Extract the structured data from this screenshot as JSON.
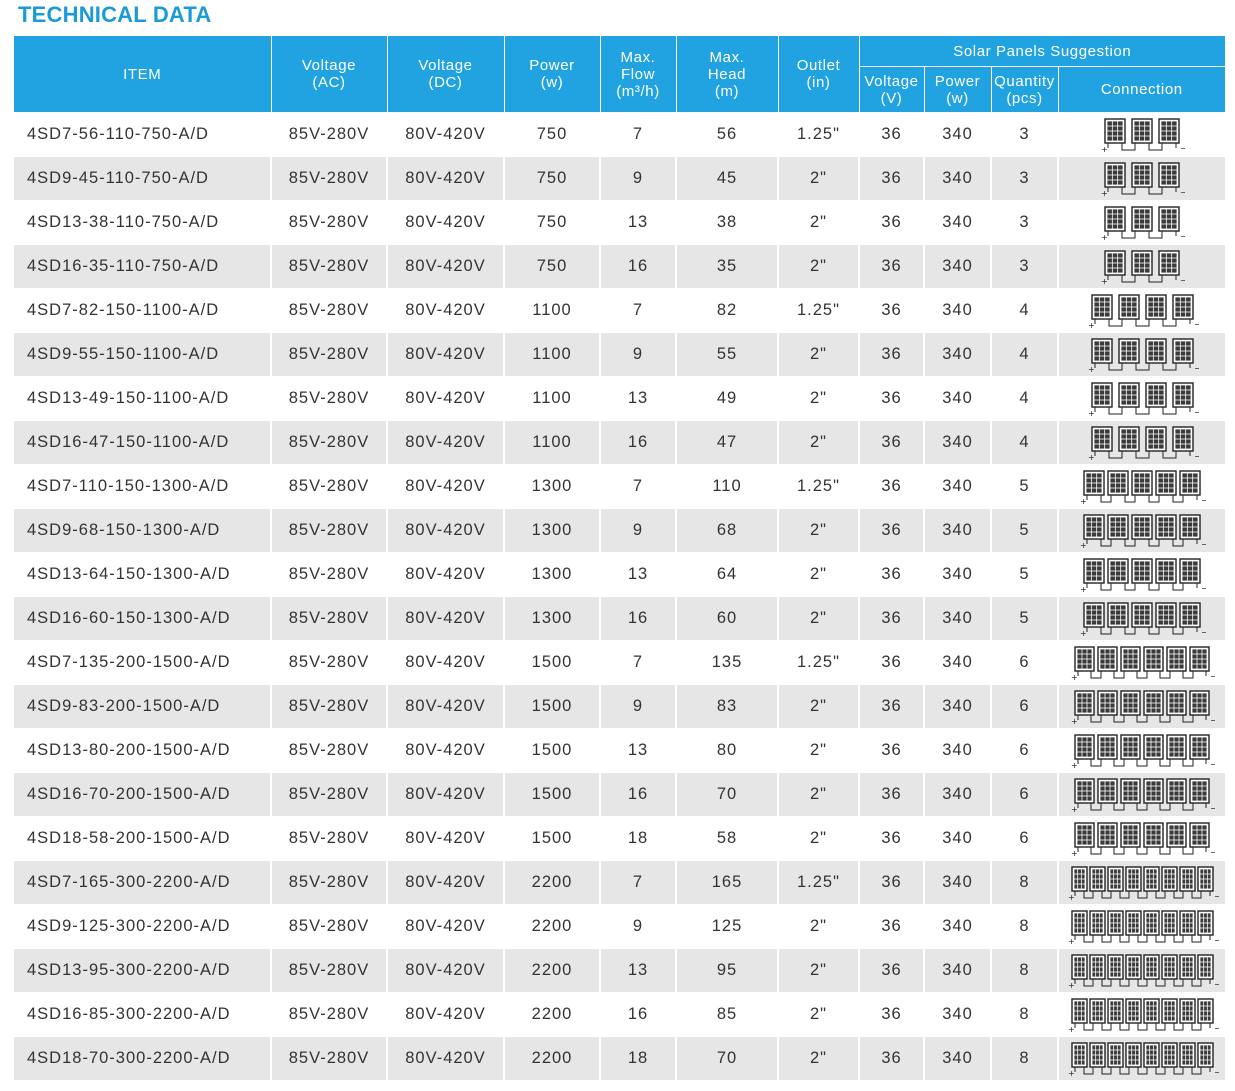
{
  "title": "TECHNICAL DATA",
  "headers": {
    "item": "ITEM",
    "voltage_ac": [
      "Voltage",
      "(AC)"
    ],
    "voltage_dc": [
      "Voltage",
      "(DC)"
    ],
    "power": [
      "Power",
      "(w)"
    ],
    "max_flow": [
      "Max.",
      "Flow",
      "(m³/h)"
    ],
    "max_head": [
      "Max.",
      "Head",
      "(m)"
    ],
    "outlet": [
      "Outlet",
      "(in)"
    ],
    "solar_group": "Solar Panels Suggestion",
    "solar_voltage": [
      "Voltage",
      "(V)"
    ],
    "solar_power": [
      "Power",
      "(w)"
    ],
    "solar_quantity": [
      "Quantity",
      "(pcs)"
    ],
    "connection": "Connection"
  },
  "rows": [
    {
      "item": "4SD7-56-110-750-A/D",
      "voltage_ac": "85V-280V",
      "voltage_dc": "80V-420V",
      "power": "750",
      "max_flow": "7",
      "max_head": "56",
      "outlet": "1.25\"",
      "panel_voltage": "36",
      "panel_power": "340",
      "quantity": "3",
      "panels": 3
    },
    {
      "item": "4SD9-45-110-750-A/D",
      "voltage_ac": "85V-280V",
      "voltage_dc": "80V-420V",
      "power": "750",
      "max_flow": "9",
      "max_head": "45",
      "outlet": "2\"",
      "panel_voltage": "36",
      "panel_power": "340",
      "quantity": "3",
      "panels": 3
    },
    {
      "item": "4SD13-38-110-750-A/D",
      "voltage_ac": "85V-280V",
      "voltage_dc": "80V-420V",
      "power": "750",
      "max_flow": "13",
      "max_head": "38",
      "outlet": "2\"",
      "panel_voltage": "36",
      "panel_power": "340",
      "quantity": "3",
      "panels": 3
    },
    {
      "item": "4SD16-35-110-750-A/D",
      "voltage_ac": "85V-280V",
      "voltage_dc": "80V-420V",
      "power": "750",
      "max_flow": "16",
      "max_head": "35",
      "outlet": "2\"",
      "panel_voltage": "36",
      "panel_power": "340",
      "quantity": "3",
      "panels": 3
    },
    {
      "item": "4SD7-82-150-1100-A/D",
      "voltage_ac": "85V-280V",
      "voltage_dc": "80V-420V",
      "power": "1100",
      "max_flow": "7",
      "max_head": "82",
      "outlet": "1.25\"",
      "panel_voltage": "36",
      "panel_power": "340",
      "quantity": "4",
      "panels": 4
    },
    {
      "item": "4SD9-55-150-1100-A/D",
      "voltage_ac": "85V-280V",
      "voltage_dc": "80V-420V",
      "power": "1100",
      "max_flow": "9",
      "max_head": "55",
      "outlet": "2\"",
      "panel_voltage": "36",
      "panel_power": "340",
      "quantity": "4",
      "panels": 4
    },
    {
      "item": "4SD13-49-150-1100-A/D",
      "voltage_ac": "85V-280V",
      "voltage_dc": "80V-420V",
      "power": "1100",
      "max_flow": "13",
      "max_head": "49",
      "outlet": "2\"",
      "panel_voltage": "36",
      "panel_power": "340",
      "quantity": "4",
      "panels": 4
    },
    {
      "item": "4SD16-47-150-1100-A/D",
      "voltage_ac": "85V-280V",
      "voltage_dc": "80V-420V",
      "power": "1100",
      "max_flow": "16",
      "max_head": "47",
      "outlet": "2\"",
      "panel_voltage": "36",
      "panel_power": "340",
      "quantity": "4",
      "panels": 4
    },
    {
      "item": "4SD7-110-150-1300-A/D",
      "voltage_ac": "85V-280V",
      "voltage_dc": "80V-420V",
      "power": "1300",
      "max_flow": "7",
      "max_head": "110",
      "outlet": "1.25\"",
      "panel_voltage": "36",
      "panel_power": "340",
      "quantity": "5",
      "panels": 5
    },
    {
      "item": "4SD9-68-150-1300-A/D",
      "voltage_ac": "85V-280V",
      "voltage_dc": "80V-420V",
      "power": "1300",
      "max_flow": "9",
      "max_head": "68",
      "outlet": "2\"",
      "panel_voltage": "36",
      "panel_power": "340",
      "quantity": "5",
      "panels": 5
    },
    {
      "item": "4SD13-64-150-1300-A/D",
      "voltage_ac": "85V-280V",
      "voltage_dc": "80V-420V",
      "power": "1300",
      "max_flow": "13",
      "max_head": "64",
      "outlet": "2\"",
      "panel_voltage": "36",
      "panel_power": "340",
      "quantity": "5",
      "panels": 5
    },
    {
      "item": "4SD16-60-150-1300-A/D",
      "voltage_ac": "85V-280V",
      "voltage_dc": "80V-420V",
      "power": "1300",
      "max_flow": "16",
      "max_head": "60",
      "outlet": "2\"",
      "panel_voltage": "36",
      "panel_power": "340",
      "quantity": "5",
      "panels": 5
    },
    {
      "item": "4SD7-135-200-1500-A/D",
      "voltage_ac": "85V-280V",
      "voltage_dc": "80V-420V",
      "power": "1500",
      "max_flow": "7",
      "max_head": "135",
      "outlet": "1.25\"",
      "panel_voltage": "36",
      "panel_power": "340",
      "quantity": "6",
      "panels": 6
    },
    {
      "item": "4SD9-83-200-1500-A/D",
      "voltage_ac": "85V-280V",
      "voltage_dc": "80V-420V",
      "power": "1500",
      "max_flow": "9",
      "max_head": "83",
      "outlet": "2\"",
      "panel_voltage": "36",
      "panel_power": "340",
      "quantity": "6",
      "panels": 6
    },
    {
      "item": "4SD13-80-200-1500-A/D",
      "voltage_ac": "85V-280V",
      "voltage_dc": "80V-420V",
      "power": "1500",
      "max_flow": "13",
      "max_head": "80",
      "outlet": "2\"",
      "panel_voltage": "36",
      "panel_power": "340",
      "quantity": "6",
      "panels": 6
    },
    {
      "item": "4SD16-70-200-1500-A/D",
      "voltage_ac": "85V-280V",
      "voltage_dc": "80V-420V",
      "power": "1500",
      "max_flow": "16",
      "max_head": "70",
      "outlet": "2\"",
      "panel_voltage": "36",
      "panel_power": "340",
      "quantity": "6",
      "panels": 6
    },
    {
      "item": "4SD18-58-200-1500-A/D",
      "voltage_ac": "85V-280V",
      "voltage_dc": "80V-420V",
      "power": "1500",
      "max_flow": "18",
      "max_head": "58",
      "outlet": "2\"",
      "panel_voltage": "36",
      "panel_power": "340",
      "quantity": "6",
      "panels": 6
    },
    {
      "item": "4SD7-165-300-2200-A/D",
      "voltage_ac": "85V-280V",
      "voltage_dc": "80V-420V",
      "power": "2200",
      "max_flow": "7",
      "max_head": "165",
      "outlet": "1.25\"",
      "panel_voltage": "36",
      "panel_power": "340",
      "quantity": "8",
      "panels": 8
    },
    {
      "item": "4SD9-125-300-2200-A/D",
      "voltage_ac": "85V-280V",
      "voltage_dc": "80V-420V",
      "power": "2200",
      "max_flow": "9",
      "max_head": "125",
      "outlet": "2\"",
      "panel_voltage": "36",
      "panel_power": "340",
      "quantity": "8",
      "panels": 8
    },
    {
      "item": "4SD13-95-300-2200-A/D",
      "voltage_ac": "85V-280V",
      "voltage_dc": "80V-420V",
      "power": "2200",
      "max_flow": "13",
      "max_head": "95",
      "outlet": "2\"",
      "panel_voltage": "36",
      "panel_power": "340",
      "quantity": "8",
      "panels": 8
    },
    {
      "item": "4SD16-85-300-2200-A/D",
      "voltage_ac": "85V-280V",
      "voltage_dc": "80V-420V",
      "power": "2200",
      "max_flow": "16",
      "max_head": "85",
      "outlet": "2\"",
      "panel_voltage": "36",
      "panel_power": "340",
      "quantity": "8",
      "panels": 8
    },
    {
      "item": "4SD18-70-300-2200-A/D",
      "voltage_ac": "85V-280V",
      "voltage_dc": "80V-420V",
      "power": "2200",
      "max_flow": "18",
      "max_head": "70",
      "outlet": "2\"",
      "panel_voltage": "36",
      "panel_power": "340",
      "quantity": "8",
      "panels": 8
    }
  ]
}
